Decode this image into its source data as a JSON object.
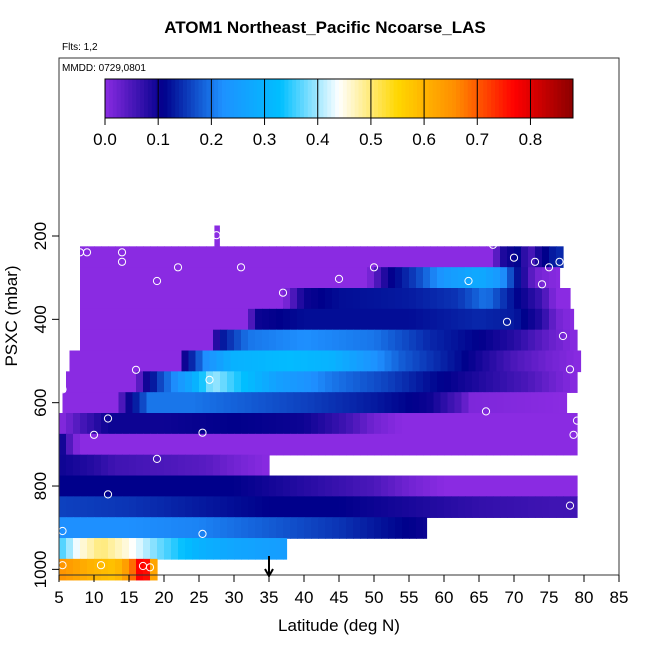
{
  "chart_data": {
    "type": "heatmap",
    "title": "ATOM1 Northeast_Pacific Ncoarse_LAS",
    "flights_label": "Flts: 1,2",
    "date_label": "MMDD: 0729,0801",
    "xlabel": "Latitude (deg N)",
    "ylabel": "PSXC (mbar)",
    "xlim": [
      5,
      85
    ],
    "ylim": [
      1000,
      0
    ],
    "x_ticks": [
      5,
      10,
      15,
      20,
      25,
      30,
      35,
      40,
      45,
      50,
      55,
      60,
      65,
      70,
      75,
      80,
      85
    ],
    "y_ticks": [
      200,
      400,
      600,
      800,
      1000
    ],
    "colorbar": {
      "range": [
        0.0,
        0.88
      ],
      "ticks": [
        0.0,
        0.1,
        0.2,
        0.3,
        0.4,
        0.5,
        0.6,
        0.7,
        0.8
      ],
      "colors": [
        "#8a2be2",
        "#00008b",
        "#1e90ff",
        "#00bfff",
        "#ffffff",
        "#ffd700",
        "#ff8c00",
        "#ff0000",
        "#8b0000"
      ]
    },
    "marker_latitude": 35,
    "layers": [
      {
        "p": 200,
        "x0": 27.2,
        "x1": 27.9,
        "b": [
          [
            27.2,
            0.0
          ],
          [
            27.9,
            0.0
          ]
        ]
      },
      {
        "p": 250,
        "x0": 8.0,
        "x1": 77.0,
        "b": [
          [
            8,
            0.0
          ],
          [
            67,
            0.0
          ],
          [
            68,
            0.08
          ],
          [
            71,
            0.12
          ],
          [
            72,
            0.03
          ],
          [
            73,
            0.08
          ],
          [
            76,
            0.14
          ],
          [
            77,
            0.14
          ]
        ]
      },
      {
        "p": 300,
        "x0": 8.0,
        "x1": 76.5,
        "b": [
          [
            8,
            0.0
          ],
          [
            49,
            0.0
          ],
          [
            52,
            0.1
          ],
          [
            56,
            0.16
          ],
          [
            60,
            0.24
          ],
          [
            65,
            0.28
          ],
          [
            68,
            0.24
          ],
          [
            71,
            0.1
          ],
          [
            73,
            0.02
          ],
          [
            76.5,
            0.0
          ]
        ]
      },
      {
        "p": 350,
        "x0": 8.0,
        "x1": 78.0,
        "b": [
          [
            8,
            0.0
          ],
          [
            37,
            0.0
          ],
          [
            40,
            0.1
          ],
          [
            45,
            0.12
          ],
          [
            55,
            0.13
          ],
          [
            62,
            0.15
          ],
          [
            66,
            0.2
          ],
          [
            70,
            0.12
          ],
          [
            74,
            0.06
          ],
          [
            76,
            0.0
          ],
          [
            78,
            0.0
          ]
        ]
      },
      {
        "p": 400,
        "x0": 8.0,
        "x1": 78.5,
        "b": [
          [
            8,
            0.0
          ],
          [
            32,
            0.0
          ],
          [
            33,
            0.1
          ],
          [
            40,
            0.12
          ],
          [
            55,
            0.12
          ],
          [
            65,
            0.14
          ],
          [
            70,
            0.13
          ],
          [
            74,
            0.08
          ],
          [
            76,
            0.02
          ],
          [
            78.5,
            0.0
          ]
        ]
      },
      {
        "p": 450,
        "x0": 8.0,
        "x1": 79.0,
        "b": [
          [
            8,
            0.0
          ],
          [
            26.5,
            0.0
          ],
          [
            28,
            0.12
          ],
          [
            32,
            0.2
          ],
          [
            40,
            0.22
          ],
          [
            50,
            0.2
          ],
          [
            58,
            0.14
          ],
          [
            65,
            0.11
          ],
          [
            70,
            0.08
          ],
          [
            75,
            0.03
          ],
          [
            79,
            0.0
          ]
        ]
      },
      {
        "p": 500,
        "x0": 6.5,
        "x1": 79.5,
        "b": [
          [
            6.5,
            0.0
          ],
          [
            22,
            0.0
          ],
          [
            23,
            0.1
          ],
          [
            26,
            0.22
          ],
          [
            30,
            0.3
          ],
          [
            38,
            0.32
          ],
          [
            44,
            0.3
          ],
          [
            48,
            0.25
          ],
          [
            54,
            0.18
          ],
          [
            62,
            0.12
          ],
          [
            70,
            0.05
          ],
          [
            75,
            0.02
          ],
          [
            79.5,
            0.0
          ]
        ]
      },
      {
        "p": 550,
        "x0": 6.0,
        "x1": 79.0,
        "b": [
          [
            6,
            0.0
          ],
          [
            16,
            0.0
          ],
          [
            17,
            0.08
          ],
          [
            20,
            0.18
          ],
          [
            24,
            0.28
          ],
          [
            27,
            0.4
          ],
          [
            30,
            0.35
          ],
          [
            36,
            0.26
          ],
          [
            44,
            0.2
          ],
          [
            52,
            0.16
          ],
          [
            58,
            0.12
          ],
          [
            66,
            0.08
          ],
          [
            72,
            0.05
          ],
          [
            76,
            0.02
          ],
          [
            79,
            0.0
          ]
        ]
      },
      {
        "p": 600,
        "x0": 5.5,
        "x1": 77.5,
        "b": [
          [
            5.5,
            0.0
          ],
          [
            13,
            0.0
          ],
          [
            15,
            0.1
          ],
          [
            18,
            0.2
          ],
          [
            24,
            0.2
          ],
          [
            32,
            0.18
          ],
          [
            40,
            0.16
          ],
          [
            50,
            0.13
          ],
          [
            58,
            0.1
          ],
          [
            62,
            0.05
          ],
          [
            64,
            0.01
          ],
          [
            77.5,
            0.0
          ]
        ]
      },
      {
        "p": 650,
        "x0": 5.0,
        "x1": 79.0,
        "b": [
          [
            5,
            0.0
          ],
          [
            8,
            0.05
          ],
          [
            12,
            0.1
          ],
          [
            20,
            0.1
          ],
          [
            30,
            0.11
          ],
          [
            40,
            0.1
          ],
          [
            46,
            0.06
          ],
          [
            50,
            0.02
          ],
          [
            54,
            0.0
          ],
          [
            79,
            0.0
          ]
        ]
      },
      {
        "p": 700,
        "x0": 5.0,
        "x1": 79.0,
        "b": [
          [
            5,
            0.12
          ],
          [
            7,
            0.02
          ],
          [
            8,
            0.0
          ],
          [
            79,
            0.0
          ]
        ]
      },
      {
        "p": 750,
        "x0": 5.0,
        "x1": 35.0,
        "b": [
          [
            5,
            0.1
          ],
          [
            10,
            0.08
          ],
          [
            13,
            0.06
          ],
          [
            20,
            0.05
          ],
          [
            26,
            0.04
          ],
          [
            30,
            0.02
          ],
          [
            35,
            0.0
          ]
        ]
      },
      {
        "p": 800,
        "x0": 5.0,
        "x1": 79.0,
        "b": [
          [
            5,
            0.11
          ],
          [
            20,
            0.11
          ],
          [
            30,
            0.11
          ],
          [
            40,
            0.08
          ],
          [
            50,
            0.05
          ],
          [
            55,
            0.02
          ],
          [
            60,
            0.0
          ],
          [
            79,
            0.0
          ]
        ]
      },
      {
        "p": 850,
        "x0": 5.0,
        "x1": 79.0,
        "b": [
          [
            5,
            0.16
          ],
          [
            15,
            0.15
          ],
          [
            25,
            0.13
          ],
          [
            35,
            0.11
          ],
          [
            45,
            0.11
          ],
          [
            55,
            0.09
          ],
          [
            65,
            0.07
          ],
          [
            75,
            0.06
          ],
          [
            79,
            0.06
          ]
        ]
      },
      {
        "p": 900,
        "x0": 5.0,
        "x1": 57.5,
        "b": [
          [
            5,
            0.22
          ],
          [
            15,
            0.22
          ],
          [
            25,
            0.21
          ],
          [
            35,
            0.18
          ],
          [
            45,
            0.15
          ],
          [
            52,
            0.12
          ],
          [
            57.5,
            0.1
          ]
        ]
      },
      {
        "p": 950,
        "x0": 5.0,
        "x1": 37.5,
        "b": [
          [
            5,
            0.35
          ],
          [
            8,
            0.45
          ],
          [
            11,
            0.5
          ],
          [
            15,
            0.45
          ],
          [
            19,
            0.38
          ],
          [
            25,
            0.3
          ],
          [
            30,
            0.27
          ],
          [
            37.5,
            0.25
          ]
        ]
      },
      {
        "p": 1000,
        "x0": 5.0,
        "x1": 19.0,
        "b": [
          [
            5,
            0.65
          ],
          [
            8,
            0.62
          ],
          [
            10,
            0.6
          ],
          [
            13,
            0.58
          ],
          [
            15,
            0.65
          ],
          [
            16,
            0.72
          ],
          [
            17,
            0.82
          ],
          [
            18,
            0.7
          ],
          [
            19,
            0.55
          ]
        ]
      }
    ],
    "points": [
      [
        8,
        239
      ],
      [
        9,
        239
      ],
      [
        14,
        239
      ],
      [
        14,
        262
      ],
      [
        19,
        308
      ],
      [
        22,
        275
      ],
      [
        31,
        275
      ],
      [
        37,
        336
      ],
      [
        45,
        303
      ],
      [
        50,
        275
      ],
      [
        63.5,
        308
      ],
      [
        67,
        221
      ],
      [
        70,
        252
      ],
      [
        73,
        262
      ],
      [
        75,
        275
      ],
      [
        76.5,
        262
      ],
      [
        78,
        298
      ],
      [
        27.5,
        198
      ],
      [
        74,
        316
      ],
      [
        69,
        406
      ],
      [
        77,
        440
      ],
      [
        78,
        520
      ],
      [
        79,
        643
      ],
      [
        78.5,
        677
      ],
      [
        66,
        621
      ],
      [
        16,
        521
      ],
      [
        26.5,
        545
      ],
      [
        5.5,
        568
      ],
      [
        12,
        638
      ],
      [
        10,
        677
      ],
      [
        25.5,
        672
      ],
      [
        19,
        735
      ],
      [
        12,
        820
      ],
      [
        5.5,
        908
      ],
      [
        25.5,
        915
      ],
      [
        5.5,
        990
      ],
      [
        11,
        990
      ],
      [
        17,
        992
      ],
      [
        18,
        995
      ],
      [
        78,
        847
      ]
    ]
  }
}
